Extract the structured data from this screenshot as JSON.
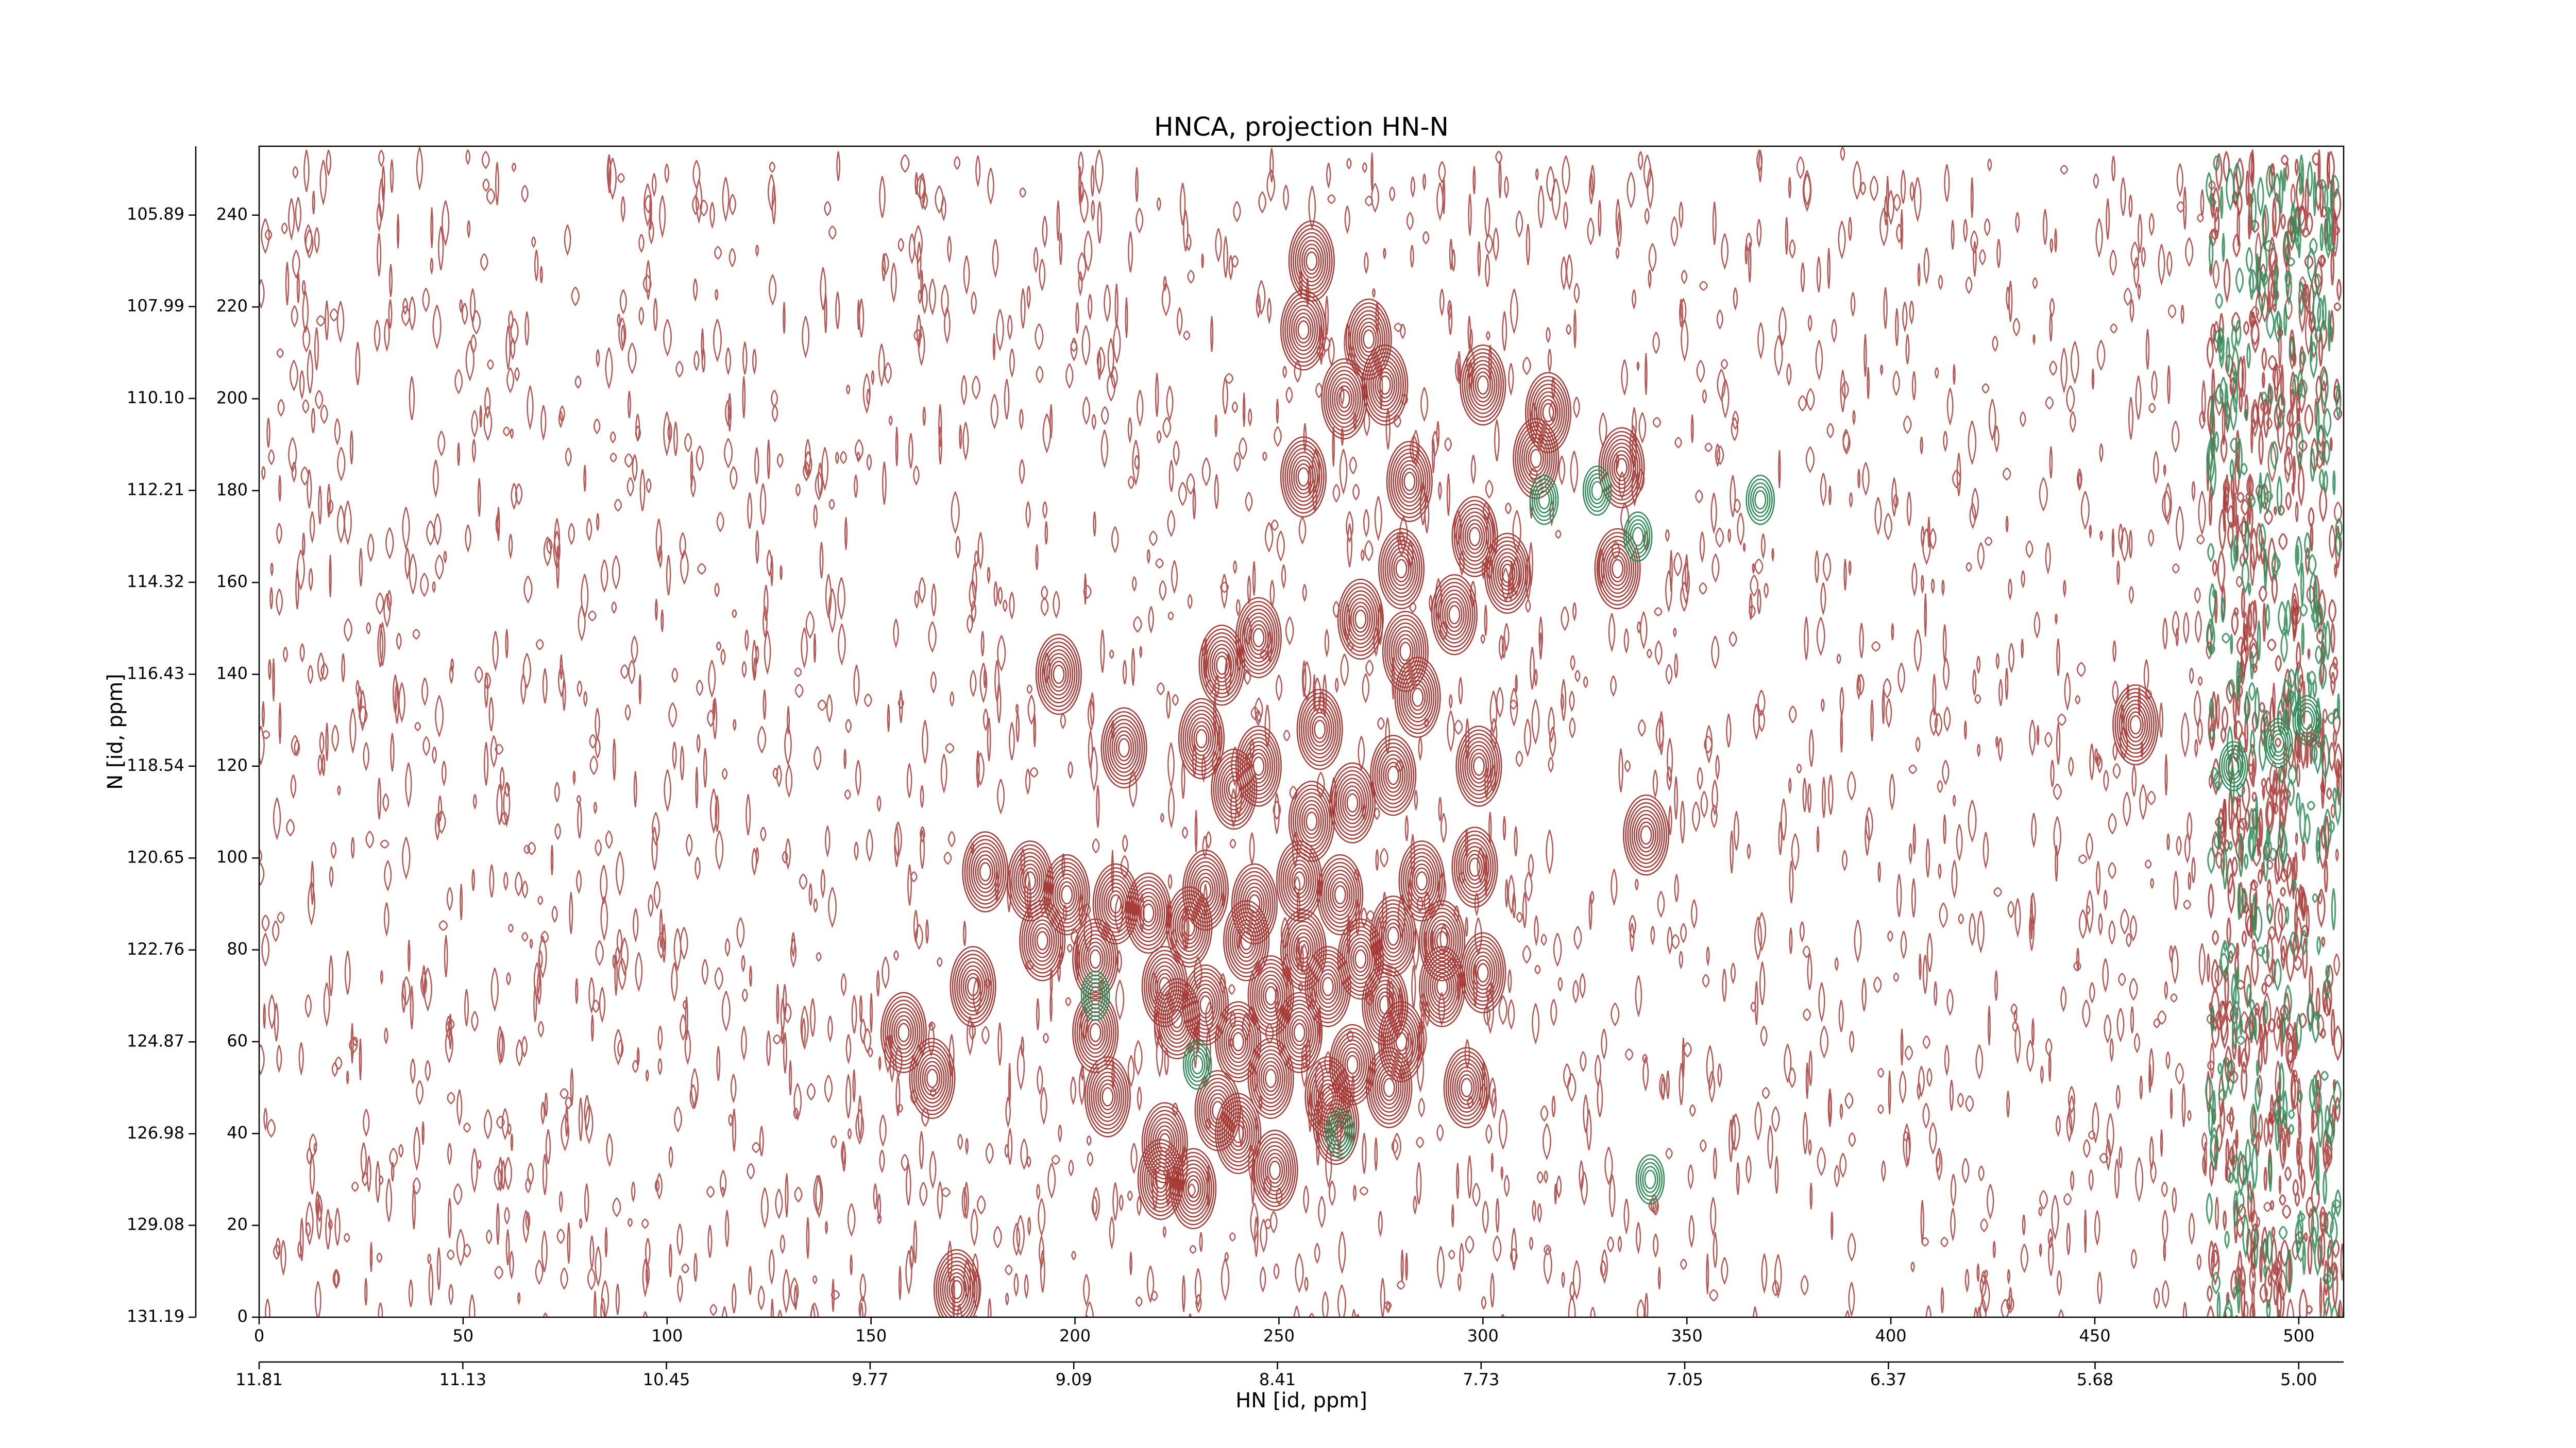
{
  "chart_data": {
    "type": "contour",
    "title": "HNCA, projection HN-N",
    "x_label": "HN [id, ppm]",
    "y_label": "N [id, ppm]",
    "xlim": [
      0,
      511
    ],
    "xticks": [
      0,
      50,
      100,
      150,
      200,
      250,
      300,
      350,
      400,
      450,
      500
    ],
    "ylim": [
      0,
      255
    ],
    "yticks": [
      0,
      20,
      40,
      60,
      80,
      100,
      120,
      140,
      160,
      180,
      200,
      220,
      240
    ],
    "x2lim": [
      11.81,
      4.85
    ],
    "x2ticks": [
      11.81,
      11.13,
      10.45,
      9.77,
      9.09,
      8.41,
      7.73,
      7.05,
      6.37,
      5.68,
      {
        "value": 5,
        "label": "5.00"
      }
    ],
    "y2lim": [
      131.19,
      104.31
    ],
    "y2ticks": [
      131.19,
      129.08,
      126.98,
      124.87,
      122.76,
      120.65,
      118.54,
      116.43,
      114.32,
      112.21,
      {
        "value": 110.1,
        "label": "110.10"
      },
      107.99,
      105.89
    ],
    "series": [
      {
        "color": "#a83a36",
        "x": [
          258,
          256,
          272,
          276,
          266,
          300,
          316,
          313,
          256,
          282,
          334,
          298,
          306,
          280,
          333,
          293,
          270,
          281,
          245,
          196,
          236,
          284,
          260,
          212,
          231,
          245,
          278,
          299,
          239,
          268,
          258,
          340,
          189,
          178,
          198,
          210,
          232,
          244,
          255,
          265,
          285,
          298,
          218,
          228,
          242,
          256,
          270,
          278,
          290,
          175,
          192,
          205,
          222,
          232,
          248,
          262,
          276,
          290,
          300,
          158,
          205,
          225,
          240,
          255,
          268,
          280,
          165,
          208,
          235,
          248,
          262,
          277,
          296,
          240,
          222,
          264,
          221,
          229,
          249,
          171,
          460
        ],
        "y": [
          230,
          215,
          213,
          203,
          200,
          203,
          197,
          187,
          183,
          182,
          185,
          170,
          162,
          163,
          163,
          153,
          152,
          145,
          148,
          140,
          142,
          135,
          128,
          124,
          126,
          120,
          118,
          120,
          115,
          112,
          108,
          105,
          95,
          97,
          92,
          90,
          93,
          90,
          95,
          92,
          95,
          98,
          88,
          85,
          82,
          80,
          78,
          83,
          82,
          72,
          82,
          78,
          72,
          68,
          70,
          72,
          68,
          72,
          75,
          62,
          62,
          65,
          60,
          62,
          55,
          60,
          52,
          48,
          45,
          52,
          48,
          50,
          50,
          40,
          38,
          42,
          30,
          28,
          32,
          6,
          129
        ]
      },
      {
        "color": "#2e8b57",
        "x": [
          315,
          328,
          368,
          338,
          341,
          265,
          230,
          205,
          484,
          495,
          502
        ],
        "y": [
          178,
          180,
          178,
          170,
          30,
          40,
          55,
          70,
          120,
          125,
          130
        ]
      }
    ]
  }
}
